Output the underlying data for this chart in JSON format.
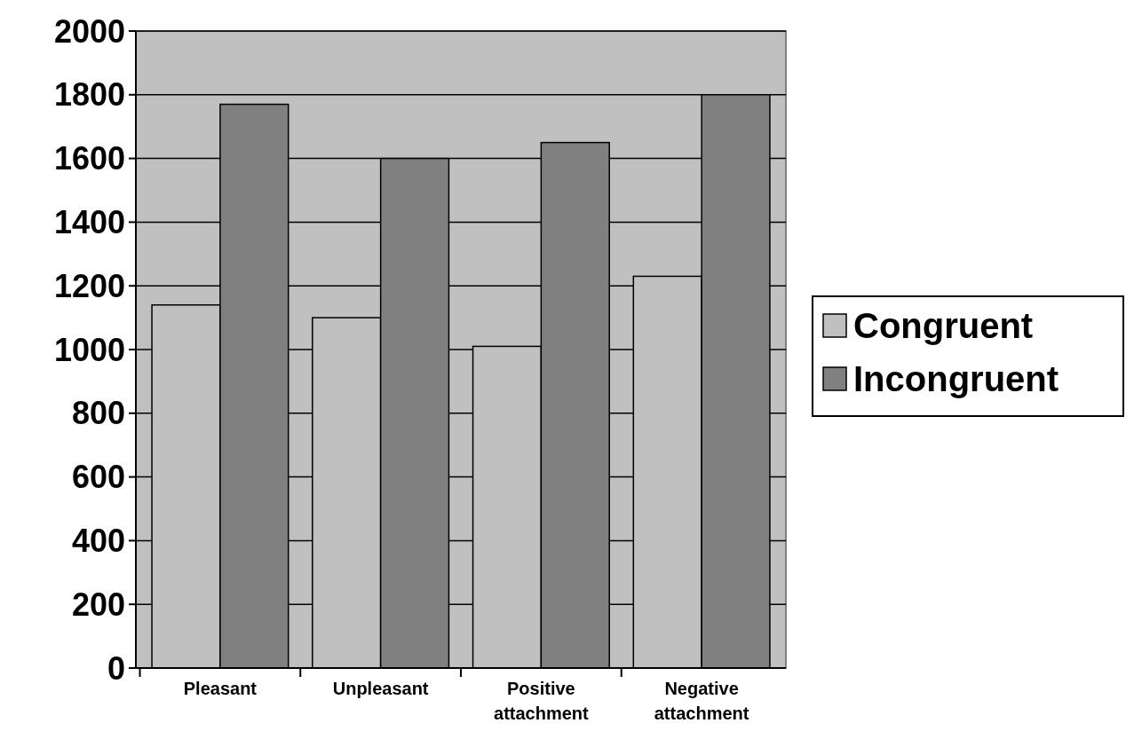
{
  "chart_data": {
    "type": "bar",
    "categories": [
      "Pleasant",
      "Unpleasant",
      "Positive attachment",
      "Negative attachment"
    ],
    "series": [
      {
        "name": "Congruent",
        "color": "#c0c0c0",
        "values": [
          1140,
          1100,
          1010,
          1230
        ]
      },
      {
        "name": "Incongruent",
        "color": "#808080",
        "values": [
          1770,
          1600,
          1650,
          1800
        ]
      }
    ],
    "ylim": [
      0,
      2000
    ],
    "yticks": [
      0,
      200,
      400,
      600,
      800,
      1000,
      1200,
      1400,
      1600,
      1800,
      2000
    ],
    "grid": "y",
    "legend": "right"
  }
}
